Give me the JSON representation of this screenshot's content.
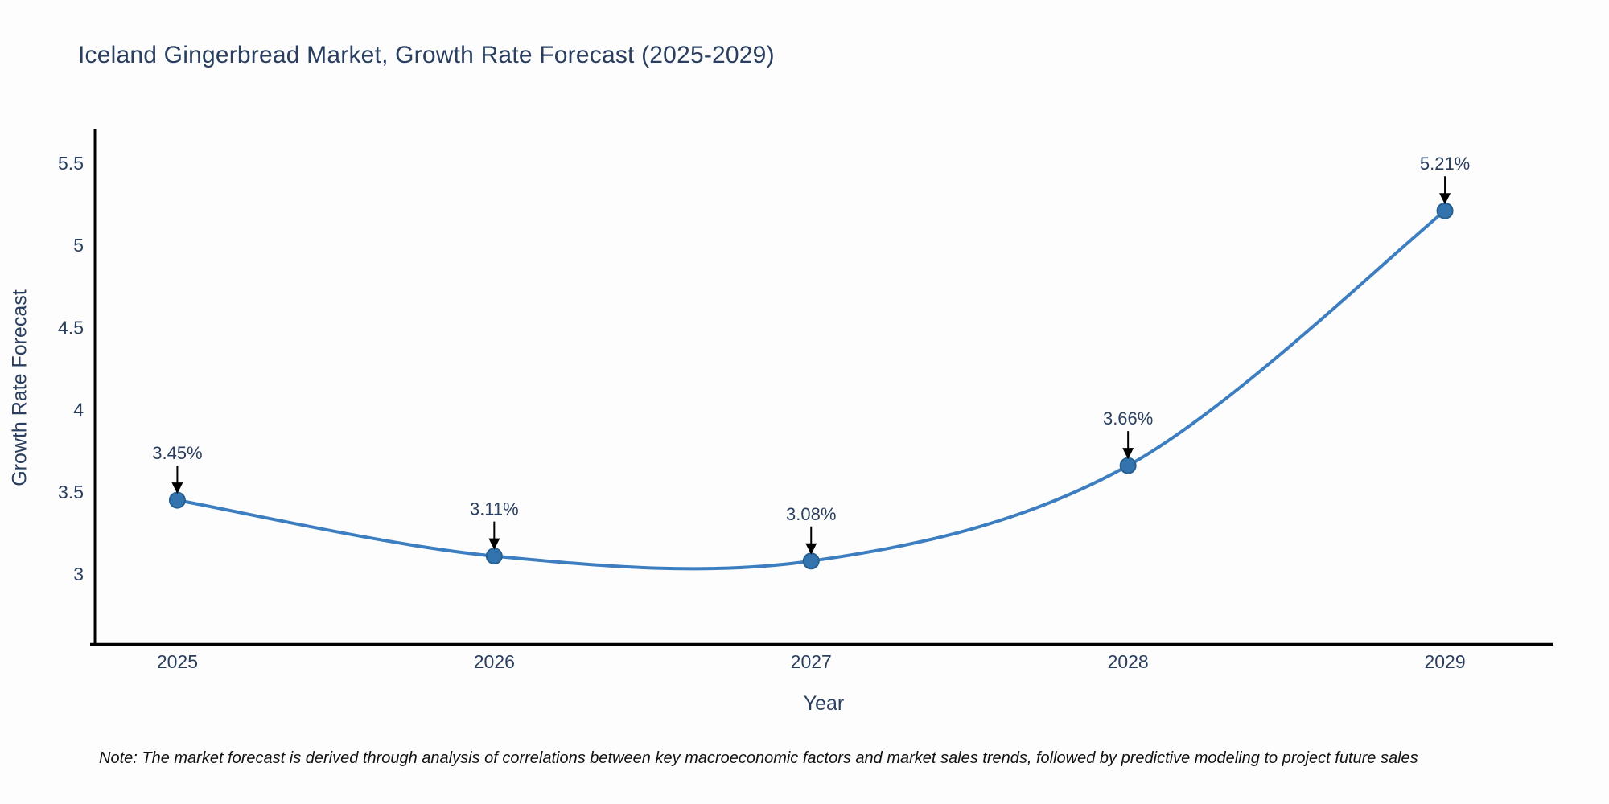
{
  "title": "Iceland Gingerbread Market, Growth Rate Forecast (2025-2029)",
  "note": "Note: The market forecast is derived through analysis of correlations between key macroeconomic factors and market sales trends, followed by predictive modeling to project future sales",
  "chart_data": {
    "type": "line",
    "title": "Iceland Gingerbread Market, Growth Rate Forecast (2025-2029)",
    "xlabel": "Year",
    "ylabel": "Growth Rate Forecast",
    "x": [
      2025,
      2026,
      2027,
      2028,
      2029
    ],
    "series": [
      {
        "name": "Growth Rate Forecast",
        "values": [
          3.45,
          3.11,
          3.08,
          3.66,
          5.21
        ]
      }
    ],
    "point_labels": [
      "3.45%",
      "3.11%",
      "3.08%",
      "3.66%",
      "5.21%"
    ],
    "xtick_labels": [
      "2025",
      "2026",
      "2027",
      "2028",
      "2029"
    ],
    "yticks": [
      3,
      3.5,
      4,
      4.5,
      5,
      5.5
    ],
    "ytick_labels": [
      "3",
      "3.5",
      "4",
      "4.5",
      "5",
      "5.5"
    ],
    "xlim": [
      2024.74,
      2029.34
    ],
    "ylim": [
      2.58,
      5.71
    ],
    "grid": false,
    "legend": "none",
    "line_shape": "spline",
    "annotation_arrows": true,
    "colors": {
      "line": "#3c7ebf",
      "marker_fill": "#3474ae",
      "marker_edge": "#27608f",
      "axis_line": "#000000",
      "tick_text": "#2a3f5f",
      "annotation_text": "#2a3f5f",
      "arrow": "#000000",
      "title_text": "#2a3f5f",
      "background": "#ffffff"
    }
  }
}
